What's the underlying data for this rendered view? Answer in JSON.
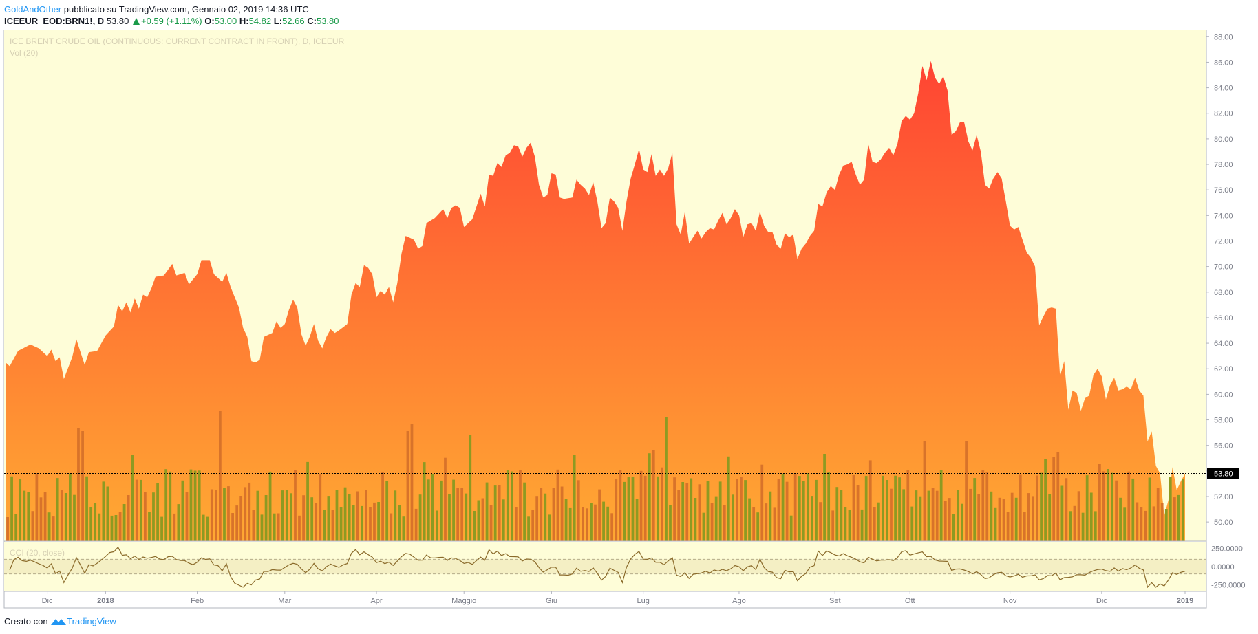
{
  "header": {
    "author": "GoldAndOther",
    "published": "pubblicato su TradingView.com, Gennaio 02, 2019 14:36 UTC",
    "symbol": "ICEEUR_EOD:BRN1!, D",
    "last": "53.80",
    "change": "+0.59 (+1.11%)",
    "o_label": "O:",
    "o_value": "53.00",
    "h_label": "H:",
    "h_value": "54.82",
    "l_label": "L:",
    "l_value": "52.66",
    "c_label": "C:",
    "c_value": "53.80"
  },
  "overlay": {
    "title": "ICE BRENT CRUDE OIL (CONTINUOUS: CURRENT CONTRACT IN FRONT), D, ICEEUR",
    "volume_label": "Vol (20)",
    "cci_label": "CCI (20, close)"
  },
  "footer": {
    "created_with": "Creato con",
    "brand": "TradingView"
  },
  "colors": {
    "background": "#fefdd8",
    "area_top": "#ff4433",
    "area_bottom": "#ffaa33",
    "vol_up": "#8e9a22",
    "vol_down": "#d8732a",
    "cci_line": "#8a6a2a",
    "cci_band": "#f4efc4",
    "price_marker": "#000000"
  },
  "chart_data": [
    {
      "type": "area",
      "title": "",
      "xlabel": "",
      "ylabel": "",
      "ylim": [
        48.5,
        88.5
      ],
      "y_ticks": [
        "50.00",
        "52.00",
        "54.00",
        "56.00",
        "58.00",
        "60.00",
        "62.00",
        "64.00",
        "66.00",
        "68.00",
        "70.00",
        "72.00",
        "74.00",
        "76.00",
        "78.00",
        "80.00",
        "82.00",
        "84.00",
        "86.00",
        "88.00"
      ],
      "x_ticks": [
        "Dic",
        "2018",
        "Feb",
        "Mar",
        "Apr",
        "Maggio",
        "Giu",
        "Lug",
        "Ago",
        "Set",
        "Ott",
        "Nov",
        "Dic",
        "2019"
      ],
      "x_tick_index": [
        10,
        24,
        46,
        67,
        89,
        110,
        131,
        153,
        176,
        199,
        217,
        241,
        263,
        283
      ],
      "last_price_label": "53.80",
      "last_price": 53.8,
      "n_bars": 283,
      "price_anchors": [
        [
          0,
          62.5
        ],
        [
          1,
          62.2
        ],
        [
          3,
          63.4
        ],
        [
          6,
          63.9
        ],
        [
          8,
          63.6
        ],
        [
          10,
          63.0
        ],
        [
          11,
          63.5
        ],
        [
          12,
          62.6
        ],
        [
          13,
          62.9
        ],
        [
          14,
          61.2
        ],
        [
          16,
          62.9
        ],
        [
          17,
          64.3
        ],
        [
          19,
          62.3
        ],
        [
          20,
          63.3
        ],
        [
          22,
          63.4
        ],
        [
          24,
          64.6
        ],
        [
          26,
          65.3
        ],
        [
          27,
          67.0
        ],
        [
          28,
          66.5
        ],
        [
          29,
          67.2
        ],
        [
          30,
          66.4
        ],
        [
          31,
          67.5
        ],
        [
          32,
          66.7
        ],
        [
          33,
          67.8
        ],
        [
          34,
          67.6
        ],
        [
          35,
          68.3
        ],
        [
          36,
          69.2
        ],
        [
          38,
          69.3
        ],
        [
          40,
          70.2
        ],
        [
          41,
          69.3
        ],
        [
          43,
          69.5
        ],
        [
          44,
          68.6
        ],
        [
          46,
          69.4
        ],
        [
          47,
          70.5
        ],
        [
          49,
          70.5
        ],
        [
          50,
          69.4
        ],
        [
          52,
          68.8
        ],
        [
          53,
          69.5
        ],
        [
          54,
          68.4
        ],
        [
          56,
          66.8
        ],
        [
          57,
          65.2
        ],
        [
          58,
          64.5
        ],
        [
          59,
          62.6
        ],
        [
          60,
          62.5
        ],
        [
          61,
          62.7
        ],
        [
          62,
          64.5
        ],
        [
          64,
          64.8
        ],
        [
          65,
          65.7
        ],
        [
          66,
          65.2
        ],
        [
          67,
          65.5
        ],
        [
          68,
          66.6
        ],
        [
          69,
          67.4
        ],
        [
          70,
          66.8
        ],
        [
          71,
          64.7
        ],
        [
          72,
          63.8
        ],
        [
          73,
          64.5
        ],
        [
          74,
          65.5
        ],
        [
          75,
          64.2
        ],
        [
          76,
          63.6
        ],
        [
          77,
          64.5
        ],
        [
          78,
          65.1
        ],
        [
          79,
          64.8
        ],
        [
          80,
          65.0
        ],
        [
          82,
          65.5
        ],
        [
          83,
          67.8
        ],
        [
          84,
          68.7
        ],
        [
          85,
          68.4
        ],
        [
          86,
          70.1
        ],
        [
          87,
          69.9
        ],
        [
          88,
          69.4
        ],
        [
          89,
          67.6
        ],
        [
          90,
          68.1
        ],
        [
          91,
          67.8
        ],
        [
          92,
          68.4
        ],
        [
          93,
          67.2
        ],
        [
          94,
          68.7
        ],
        [
          95,
          71.0
        ],
        [
          96,
          72.4
        ],
        [
          98,
          72.1
        ],
        [
          99,
          71.4
        ],
        [
          100,
          71.6
        ],
        [
          101,
          73.4
        ],
        [
          103,
          73.8
        ],
        [
          105,
          74.5
        ],
        [
          106,
          73.8
        ],
        [
          107,
          74.6
        ],
        [
          108,
          74.8
        ],
        [
          109,
          74.6
        ],
        [
          110,
          73.1
        ],
        [
          111,
          73.4
        ],
        [
          112,
          73.7
        ],
        [
          113,
          74.7
        ],
        [
          114,
          75.7
        ],
        [
          115,
          74.7
        ],
        [
          116,
          77.2
        ],
        [
          117,
          77.1
        ],
        [
          118,
          78.1
        ],
        [
          119,
          77.8
        ],
        [
          120,
          78.7
        ],
        [
          121,
          78.9
        ],
        [
          122,
          79.5
        ],
        [
          123,
          79.4
        ],
        [
          124,
          78.6
        ],
        [
          125,
          79.3
        ],
        [
          126,
          79.7
        ],
        [
          127,
          78.6
        ],
        [
          128,
          76.4
        ],
        [
          129,
          75.4
        ],
        [
          130,
          75.6
        ],
        [
          131,
          77.3
        ],
        [
          132,
          77.2
        ],
        [
          133,
          75.4
        ],
        [
          134,
          75.3
        ],
        [
          136,
          75.4
        ],
        [
          137,
          76.8
        ],
        [
          138,
          76.4
        ],
        [
          139,
          76.1
        ],
        [
          140,
          75.6
        ],
        [
          141,
          76.6
        ],
        [
          142,
          75.1
        ],
        [
          143,
          73.0
        ],
        [
          144,
          73.4
        ],
        [
          145,
          75.4
        ],
        [
          146,
          75.1
        ],
        [
          147,
          74.6
        ],
        [
          148,
          72.8
        ],
        [
          149,
          75.1
        ],
        [
          150,
          76.9
        ],
        [
          151,
          78.0
        ],
        [
          152,
          79.2
        ],
        [
          153,
          77.6
        ],
        [
          154,
          77.4
        ],
        [
          155,
          78.8
        ],
        [
          156,
          77.1
        ],
        [
          157,
          77.6
        ],
        [
          158,
          77.1
        ],
        [
          159,
          77.7
        ],
        [
          160,
          78.9
        ],
        [
          161,
          73.3
        ],
        [
          162,
          72.5
        ],
        [
          163,
          74.3
        ],
        [
          164,
          71.8
        ],
        [
          165,
          72.3
        ],
        [
          166,
          72.8
        ],
        [
          167,
          72.2
        ],
        [
          168,
          72.7
        ],
        [
          169,
          73.0
        ],
        [
          170,
          72.9
        ],
        [
          171,
          73.6
        ],
        [
          172,
          74.2
        ],
        [
          173,
          73.3
        ],
        [
          174,
          73.8
        ],
        [
          175,
          74.5
        ],
        [
          176,
          74.0
        ],
        [
          177,
          72.3
        ],
        [
          178,
          73.3
        ],
        [
          179,
          73.4
        ],
        [
          180,
          72.8
        ],
        [
          181,
          74.3
        ],
        [
          182,
          73.2
        ],
        [
          183,
          72.7
        ],
        [
          184,
          72.7
        ],
        [
          185,
          71.7
        ],
        [
          186,
          71.4
        ],
        [
          187,
          72.6
        ],
        [
          188,
          72.3
        ],
        [
          189,
          72.5
        ],
        [
          190,
          70.6
        ],
        [
          191,
          71.4
        ],
        [
          192,
          71.8
        ],
        [
          193,
          72.4
        ],
        [
          194,
          72.8
        ],
        [
          195,
          74.9
        ],
        [
          196,
          74.7
        ],
        [
          197,
          75.8
        ],
        [
          198,
          76.3
        ],
        [
          199,
          76.0
        ],
        [
          200,
          77.2
        ],
        [
          201,
          77.9
        ],
        [
          202,
          78.0
        ],
        [
          203,
          78.2
        ],
        [
          204,
          77.2
        ],
        [
          205,
          76.4
        ],
        [
          206,
          76.8
        ],
        [
          207,
          79.6
        ],
        [
          208,
          78.2
        ],
        [
          209,
          78.1
        ],
        [
          210,
          78.4
        ],
        [
          211,
          78.9
        ],
        [
          212,
          79.3
        ],
        [
          213,
          78.7
        ],
        [
          214,
          79.6
        ],
        [
          215,
          81.4
        ],
        [
          216,
          81.8
        ],
        [
          217,
          81.5
        ],
        [
          218,
          82.0
        ],
        [
          219,
          83.6
        ],
        [
          220,
          85.7
        ],
        [
          221,
          84.6
        ],
        [
          222,
          86.1
        ],
        [
          223,
          84.8
        ],
        [
          224,
          84.3
        ],
        [
          225,
          84.9
        ],
        [
          226,
          83.8
        ],
        [
          227,
          80.3
        ],
        [
          228,
          80.6
        ],
        [
          229,
          81.3
        ],
        [
          230,
          81.3
        ],
        [
          231,
          79.8
        ],
        [
          232,
          79.1
        ],
        [
          233,
          80.3
        ],
        [
          234,
          79.0
        ],
        [
          235,
          76.4
        ],
        [
          236,
          76.1
        ],
        [
          237,
          76.9
        ],
        [
          238,
          77.4
        ],
        [
          239,
          76.9
        ],
        [
          240,
          75.1
        ],
        [
          241,
          73.2
        ],
        [
          242,
          72.9
        ],
        [
          243,
          73.1
        ],
        [
          244,
          72.1
        ],
        [
          245,
          71.1
        ],
        [
          246,
          70.7
        ],
        [
          247,
          70.0
        ],
        [
          248,
          65.4
        ],
        [
          249,
          66.1
        ],
        [
          250,
          66.7
        ],
        [
          251,
          66.8
        ],
        [
          252,
          66.7
        ],
        [
          253,
          61.4
        ],
        [
          254,
          62.6
        ],
        [
          255,
          58.8
        ],
        [
          256,
          60.3
        ],
        [
          257,
          60.1
        ],
        [
          258,
          58.7
        ],
        [
          259,
          59.7
        ],
        [
          260,
          59.9
        ],
        [
          261,
          61.5
        ],
        [
          262,
          62.0
        ],
        [
          263,
          61.4
        ],
        [
          264,
          59.6
        ],
        [
          265,
          60.7
        ],
        [
          266,
          61.3
        ],
        [
          267,
          60.3
        ],
        [
          268,
          60.4
        ],
        [
          269,
          60.6
        ],
        [
          270,
          60.4
        ],
        [
          271,
          61.3
        ],
        [
          272,
          60.3
        ],
        [
          273,
          59.9
        ],
        [
          274,
          56.3
        ],
        [
          275,
          57.1
        ],
        [
          276,
          54.4
        ],
        [
          277,
          53.8
        ],
        [
          278,
          50.5
        ],
        [
          279,
          51.7
        ],
        [
          280,
          54.3
        ],
        [
          281,
          52.5
        ],
        [
          282,
          53.2
        ],
        [
          283,
          53.8
        ]
      ]
    },
    {
      "type": "bar",
      "name": "Vol (20)",
      "note": "volume histogram, relative values (0-100), colour by day direction",
      "values_generated_from_seed": 17
    },
    {
      "type": "line",
      "name": "CCI (20, close)",
      "y_ticks": [
        "250.0000",
        "0.0000",
        "-250.0000"
      ],
      "ylim": [
        -300,
        300
      ],
      "band": [
        -100,
        100
      ]
    }
  ]
}
